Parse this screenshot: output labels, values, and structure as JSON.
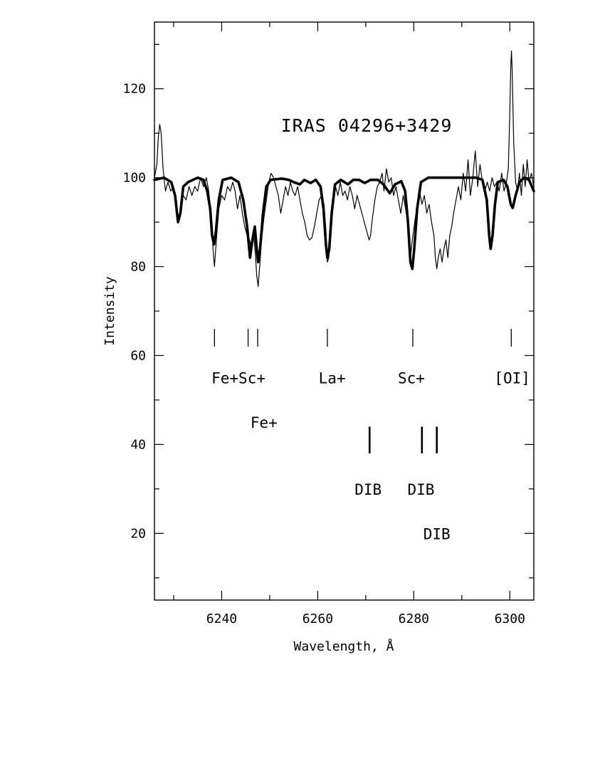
{
  "chart_data": {
    "type": "line",
    "title": "IRAS 04296+3429",
    "xlabel": "Wavelength, Å",
    "ylabel": "Intensity",
    "xlim": [
      6226,
      6305
    ],
    "ylim": [
      5,
      135
    ],
    "x_ticks": [
      6240,
      6260,
      6280,
      6300
    ],
    "y_ticks": [
      20,
      40,
      60,
      80,
      100,
      120
    ],
    "grid": false,
    "series": [
      {
        "style": "thin-solid",
        "points": [
          [
            6226,
            100
          ],
          [
            6226.5,
            103
          ],
          [
            6226.8,
            109
          ],
          [
            6227.1,
            112
          ],
          [
            6227.4,
            110
          ],
          [
            6227.8,
            102
          ],
          [
            6228.3,
            97
          ],
          [
            6228.8,
            99
          ],
          [
            6229.4,
            97
          ],
          [
            6230.0,
            98
          ],
          [
            6230.5,
            94
          ],
          [
            6231.0,
            91
          ],
          [
            6231.5,
            93
          ],
          [
            6232.0,
            96
          ],
          [
            6232.6,
            95
          ],
          [
            6233.2,
            98
          ],
          [
            6233.8,
            96
          ],
          [
            6234.4,
            98
          ],
          [
            6235.0,
            97
          ],
          [
            6235.6,
            100
          ],
          [
            6236.2,
            98
          ],
          [
            6236.8,
            100
          ],
          [
            6237.3,
            97
          ],
          [
            6237.8,
            92
          ],
          [
            6238.2,
            84
          ],
          [
            6238.5,
            80
          ],
          [
            6238.9,
            86
          ],
          [
            6239.4,
            93
          ],
          [
            6240.0,
            96
          ],
          [
            6240.6,
            95
          ],
          [
            6241.2,
            98
          ],
          [
            6241.8,
            97
          ],
          [
            6242.3,
            99
          ],
          [
            6242.8,
            97
          ],
          [
            6243.3,
            93
          ],
          [
            6243.8,
            96
          ],
          [
            6244.3,
            92
          ],
          [
            6244.8,
            89
          ],
          [
            6245.3,
            87
          ],
          [
            6245.8,
            86
          ],
          [
            6246.2,
            84
          ],
          [
            6246.6,
            88
          ],
          [
            6247.0,
            83
          ],
          [
            6247.3,
            78
          ],
          [
            6247.6,
            75.5
          ],
          [
            6247.9,
            80
          ],
          [
            6248.3,
            86
          ],
          [
            6248.8,
            91
          ],
          [
            6249.3,
            95
          ],
          [
            6249.8,
            99
          ],
          [
            6250.3,
            101
          ],
          [
            6250.8,
            100
          ],
          [
            6251.3,
            98
          ],
          [
            6251.8,
            96
          ],
          [
            6252.3,
            92
          ],
          [
            6252.8,
            95
          ],
          [
            6253.3,
            98
          ],
          [
            6253.8,
            96
          ],
          [
            6254.3,
            99
          ],
          [
            6254.8,
            97
          ],
          [
            6255.3,
            96
          ],
          [
            6255.8,
            98
          ],
          [
            6256.3,
            95
          ],
          [
            6256.8,
            92
          ],
          [
            6257.3,
            90
          ],
          [
            6257.8,
            87
          ],
          [
            6258.3,
            86
          ],
          [
            6258.8,
            86.5
          ],
          [
            6259.3,
            89
          ],
          [
            6259.8,
            92
          ],
          [
            6260.3,
            95
          ],
          [
            6260.8,
            96
          ],
          [
            6261.3,
            94
          ],
          [
            6261.7,
            88
          ],
          [
            6262.0,
            81
          ],
          [
            6262.3,
            82
          ],
          [
            6262.7,
            88
          ],
          [
            6263.2,
            95
          ],
          [
            6263.7,
            98
          ],
          [
            6264.2,
            96
          ],
          [
            6264.7,
            99
          ],
          [
            6265.2,
            96
          ],
          [
            6265.7,
            97
          ],
          [
            6266.2,
            95
          ],
          [
            6266.7,
            98
          ],
          [
            6267.2,
            96
          ],
          [
            6267.7,
            93
          ],
          [
            6268.2,
            96
          ],
          [
            6268.7,
            94
          ],
          [
            6269.2,
            92
          ],
          [
            6269.7,
            90
          ],
          [
            6270.2,
            88
          ],
          [
            6270.7,
            86
          ],
          [
            6271.0,
            87
          ],
          [
            6271.4,
            91
          ],
          [
            6271.9,
            95
          ],
          [
            6272.4,
            98
          ],
          [
            6272.9,
            99
          ],
          [
            6273.4,
            101
          ],
          [
            6273.8,
            97
          ],
          [
            6274.3,
            102
          ],
          [
            6274.8,
            99
          ],
          [
            6275.3,
            100
          ],
          [
            6275.8,
            96
          ],
          [
            6276.3,
            98
          ],
          [
            6276.8,
            95
          ],
          [
            6277.3,
            92
          ],
          [
            6277.8,
            96
          ],
          [
            6278.3,
            93
          ],
          [
            6278.7,
            90
          ],
          [
            6279.0,
            85
          ],
          [
            6279.3,
            82
          ],
          [
            6279.7,
            86
          ],
          [
            6280.2,
            90
          ],
          [
            6280.7,
            94
          ],
          [
            6281.2,
            97
          ],
          [
            6281.7,
            94
          ],
          [
            6282.2,
            96
          ],
          [
            6282.7,
            92
          ],
          [
            6283.2,
            94
          ],
          [
            6283.7,
            90
          ],
          [
            6284.2,
            87
          ],
          [
            6284.5,
            82
          ],
          [
            6284.8,
            79.5
          ],
          [
            6285.1,
            82
          ],
          [
            6285.5,
            84
          ],
          [
            6285.9,
            81
          ],
          [
            6286.3,
            84
          ],
          [
            6286.7,
            86
          ],
          [
            6287.1,
            82
          ],
          [
            6287.5,
            87
          ],
          [
            6287.9,
            89
          ],
          [
            6288.3,
            92
          ],
          [
            6288.8,
            95
          ],
          [
            6289.3,
            98
          ],
          [
            6289.8,
            95
          ],
          [
            6290.3,
            101
          ],
          [
            6290.8,
            97
          ],
          [
            6291.3,
            104
          ],
          [
            6291.8,
            96
          ],
          [
            6292.3,
            100
          ],
          [
            6292.8,
            106
          ],
          [
            6293.3,
            98
          ],
          [
            6293.8,
            103
          ],
          [
            6294.3,
            99
          ],
          [
            6294.8,
            97
          ],
          [
            6295.3,
            99
          ],
          [
            6295.8,
            97
          ],
          [
            6296.3,
            100
          ],
          [
            6296.8,
            98
          ],
          [
            6297.3,
            99
          ],
          [
            6297.8,
            97
          ],
          [
            6298.3,
            101
          ],
          [
            6298.8,
            97
          ],
          [
            6299.3,
            99
          ],
          [
            6299.7,
            102
          ],
          [
            6300.0,
            115
          ],
          [
            6300.2,
            125
          ],
          [
            6300.35,
            128.5
          ],
          [
            6300.5,
            124
          ],
          [
            6300.8,
            108
          ],
          [
            6301.2,
            99
          ],
          [
            6301.6,
            97
          ],
          [
            6302.0,
            101
          ],
          [
            6302.4,
            96
          ],
          [
            6302.8,
            103
          ],
          [
            6303.2,
            98
          ],
          [
            6303.6,
            104
          ],
          [
            6304.0,
            99
          ],
          [
            6304.5,
            101
          ],
          [
            6305,
            98
          ]
        ]
      },
      {
        "style": "thick-model",
        "points": [
          [
            6226,
            99.5
          ],
          [
            6228,
            100
          ],
          [
            6229.5,
            99
          ],
          [
            6230.3,
            96
          ],
          [
            6230.9,
            90
          ],
          [
            6231.4,
            92
          ],
          [
            6232,
            98
          ],
          [
            6233,
            99
          ],
          [
            6235,
            100
          ],
          [
            6236.2,
            99.5
          ],
          [
            6237,
            97
          ],
          [
            6237.6,
            93
          ],
          [
            6238.0,
            87
          ],
          [
            6238.4,
            85
          ],
          [
            6238.8,
            88
          ],
          [
            6239.4,
            95
          ],
          [
            6240.2,
            99.5
          ],
          [
            6242,
            100
          ],
          [
            6243.5,
            99
          ],
          [
            6244.5,
            95
          ],
          [
            6245.3,
            89
          ],
          [
            6245.9,
            82
          ],
          [
            6246.4,
            86
          ],
          [
            6246.9,
            89
          ],
          [
            6247.3,
            84
          ],
          [
            6247.6,
            81
          ],
          [
            6248.0,
            84
          ],
          [
            6248.6,
            92
          ],
          [
            6249.3,
            98
          ],
          [
            6250.2,
            99.5
          ],
          [
            6252.5,
            99.8
          ],
          [
            6254,
            99.5
          ],
          [
            6255,
            99
          ],
          [
            6256.3,
            98.5
          ],
          [
            6257.2,
            99.5
          ],
          [
            6258.5,
            98.8
          ],
          [
            6259.6,
            99.5
          ],
          [
            6260.6,
            98
          ],
          [
            6261.2,
            93
          ],
          [
            6261.7,
            85
          ],
          [
            6262.0,
            82
          ],
          [
            6262.4,
            84
          ],
          [
            6262.9,
            92
          ],
          [
            6263.6,
            98.5
          ],
          [
            6264.8,
            99.5
          ],
          [
            6266.3,
            98.5
          ],
          [
            6267.4,
            99.5
          ],
          [
            6268.6,
            99.5
          ],
          [
            6269.8,
            98.8
          ],
          [
            6271,
            99.5
          ],
          [
            6272.5,
            99.5
          ],
          [
            6273.7,
            98.5
          ],
          [
            6275.0,
            96.5
          ],
          [
            6276.1,
            98.5
          ],
          [
            6277.4,
            99.2
          ],
          [
            6278.2,
            97
          ],
          [
            6278.8,
            90
          ],
          [
            6279.3,
            81
          ],
          [
            6279.7,
            79.5
          ],
          [
            6280.1,
            84
          ],
          [
            6280.7,
            93
          ],
          [
            6281.5,
            99
          ],
          [
            6283,
            100
          ],
          [
            6290,
            100
          ],
          [
            6293,
            100
          ],
          [
            6294.3,
            99.5
          ],
          [
            6295.2,
            95
          ],
          [
            6295.7,
            87
          ],
          [
            6296.0,
            84
          ],
          [
            6296.4,
            87
          ],
          [
            6296.9,
            94
          ],
          [
            6297.5,
            99
          ],
          [
            6298.7,
            99.5
          ],
          [
            6299.5,
            98
          ],
          [
            6300.2,
            94
          ],
          [
            6300.6,
            93.2
          ],
          [
            6301.2,
            96
          ],
          [
            6302,
            99
          ],
          [
            6303,
            100
          ],
          [
            6304,
            99.5
          ],
          [
            6305,
            97
          ]
        ]
      }
    ],
    "line_ids": [
      {
        "x": 6238.5,
        "y_bottom": 62,
        "y_top": 66,
        "weight": "thin"
      },
      {
        "x": 6245.5,
        "y_bottom": 62,
        "y_top": 66,
        "weight": "thin"
      },
      {
        "x": 6247.5,
        "y_bottom": 62,
        "y_top": 66,
        "weight": "thin"
      },
      {
        "x": 6262.0,
        "y_bottom": 62,
        "y_top": 66,
        "weight": "thin"
      },
      {
        "x": 6279.8,
        "y_bottom": 62,
        "y_top": 66,
        "weight": "thin"
      },
      {
        "x": 6300.3,
        "y_bottom": 62,
        "y_top": 66,
        "weight": "thin"
      },
      {
        "x": 6270.8,
        "y_bottom": 38,
        "y_top": 44,
        "weight": "thick"
      },
      {
        "x": 6281.7,
        "y_bottom": 38,
        "y_top": 44,
        "weight": "thick"
      },
      {
        "x": 6284.8,
        "y_bottom": 38,
        "y_top": 44,
        "weight": "thick"
      }
    ],
    "annotations": [
      {
        "text": "Fe+Sc+",
        "x": 6243.5,
        "y": 55
      },
      {
        "text": "Fe+",
        "x": 6248.8,
        "y": 45
      },
      {
        "text": "La+",
        "x": 6263.0,
        "y": 55
      },
      {
        "text": "Sc+",
        "x": 6279.5,
        "y": 55
      },
      {
        "text": "[OI]",
        "x": 6300.5,
        "y": 55
      },
      {
        "text": "DIB",
        "x": 6270.5,
        "y": 30
      },
      {
        "text": "DIB",
        "x": 6281.5,
        "y": 30
      },
      {
        "text": "DIB",
        "x": 6284.8,
        "y": 20
      }
    ]
  }
}
